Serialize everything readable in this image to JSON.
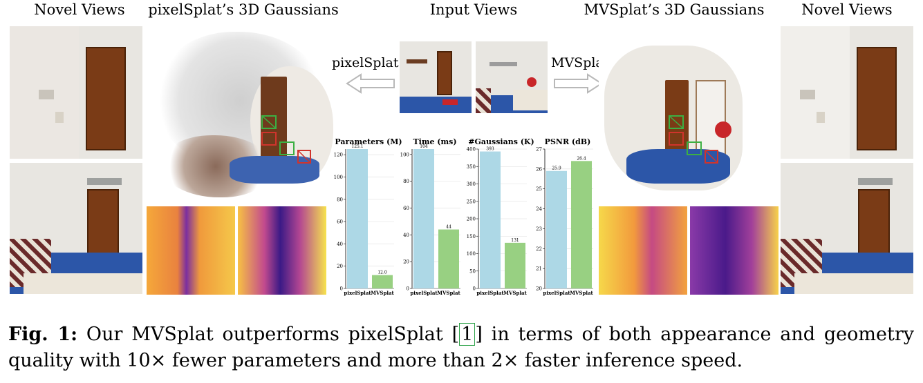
{
  "headers": {
    "novel_left": "Novel Views",
    "pixelsplat_gaussians": "pixelSplat’s 3D Gaussians",
    "input_views": "Input Views",
    "mvsplat_gaussians": "MVSplat’s 3D Gaussians",
    "novel_right": "Novel Views"
  },
  "arrow_labels": {
    "left": "pixelSplat",
    "right": "MVSplat"
  },
  "colors": {
    "pixelsplat_bar": "#add8e6",
    "mvsplat_bar": "#98d082",
    "cite_box": "#2fa34a"
  },
  "chart_data": [
    {
      "type": "bar",
      "title": "Parameters (M)",
      "categories": [
        "pixelSplat",
        "MVSplat"
      ],
      "values": [
        125.1,
        12.0
      ],
      "ylim": [
        0,
        125.1
      ],
      "yticks": [
        0,
        20,
        40,
        60,
        80,
        100,
        120
      ],
      "value_labels": [
        "125.1",
        "12.0"
      ]
    },
    {
      "type": "bar",
      "title": "Time (ms)",
      "categories": [
        "pixelSplat",
        "MVSplat"
      ],
      "values": [
        104,
        44
      ],
      "ylim": [
        0,
        104
      ],
      "yticks": [
        0,
        20,
        40,
        60,
        80,
        100
      ],
      "value_labels": [
        "104",
        "44"
      ]
    },
    {
      "type": "bar",
      "title": "#Gaussians (K)",
      "categories": [
        "pixelSplat",
        "MVSplat"
      ],
      "values": [
        393,
        131
      ],
      "ylim": [
        0,
        400
      ],
      "yticks": [
        0,
        50,
        100,
        150,
        200,
        250,
        300,
        350,
        400
      ],
      "value_labels": [
        "393",
        "131"
      ]
    },
    {
      "type": "bar",
      "title": "PSNR (dB)",
      "categories": [
        "pixelSplat",
        "MVSplat"
      ],
      "values": [
        25.9,
        26.4
      ],
      "ylim": [
        20,
        27
      ],
      "yticks": [
        20,
        21,
        22,
        23,
        24,
        25,
        26,
        27
      ],
      "value_labels": [
        "25.9",
        "26.4"
      ]
    }
  ],
  "caption": {
    "fig_label": "Fig. 1:",
    "text_before_cite": " Our MVSplat outperforms pixelSplat ",
    "cite": "1",
    "text_after_cite": " in terms of both appearance and geometry quality with 10× fewer parameters and more than 2× faster inference speed."
  }
}
